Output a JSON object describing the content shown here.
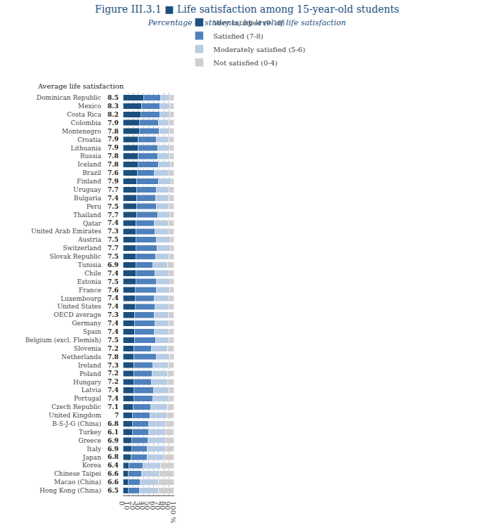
{
  "chart_data": {
    "type": "bar",
    "orientation": "horizontal",
    "stacked": true,
    "title": "Figure III.3.1 ■ Life satisfaction among 15-year-old students",
    "subtitle": "Percentage of students, by level of life satisfaction",
    "categories": [
      "Dominican Republic",
      "Mexico",
      "Costa Rica",
      "Colombia",
      "Montenegro",
      "Croatia",
      "Lithuania",
      "Russia",
      "Iceland",
      "Brazil",
      "Finland",
      "Uruguay",
      "Bulgaria",
      "Peru",
      "Thailand",
      "Qatar",
      "United Arab Emirates",
      "Austria",
      "Switzerland",
      "Slovak Republic",
      "Tunisia",
      "Chile",
      "Estonia",
      "France",
      "Luxembourg",
      "United States",
      "OECD average",
      "Germany",
      "Spain",
      "Belgium (excl. Flemish)",
      "Slovenia",
      "Netherlands",
      "Ireland",
      "Poland",
      "Hungary",
      "Latvia",
      "Portugal",
      "Czech Republic",
      "United Kingdom",
      "B-S-J-G (China)",
      "Turkey",
      "Greece",
      "Italy",
      "Japan",
      "Korea",
      "Chinese Taipei",
      "Macao (China)",
      "Hong Kong (China)"
    ],
    "series": [
      {
        "name": "Very satisfied (9-10)",
        "color": "#1b4f7e",
        "values": [
          40,
          37,
          35,
          32,
          32,
          30,
          30,
          30,
          29,
          28,
          27,
          27,
          27,
          27,
          27,
          26,
          26,
          25,
          25,
          25,
          25,
          25,
          25,
          24,
          24,
          24,
          23,
          23,
          23,
          23,
          22,
          22,
          22,
          22,
          21,
          21,
          21,
          20,
          19,
          18,
          18,
          17,
          17,
          16,
          12,
          11,
          10,
          10
        ]
      },
      {
        "name": "Satisfied (7-8)",
        "color": "#4e81bd",
        "values": [
          34,
          36,
          37,
          37,
          39,
          36,
          38,
          38,
          40,
          34,
          43,
          39,
          37,
          38,
          41,
          36,
          37,
          41,
          42,
          39,
          34,
          38,
          41,
          41,
          38,
          39,
          38,
          40,
          39,
          41,
          34,
          44,
          37,
          35,
          35,
          39,
          38,
          35,
          34,
          32,
          33,
          32,
          31,
          31,
          27,
          26,
          24,
          23
        ]
      },
      {
        "name": "Moderately satisfied (5-6)",
        "color": "#b8cce4",
        "values": [
          18,
          19,
          20,
          22,
          21,
          25,
          24,
          24,
          24,
          28,
          24,
          25,
          27,
          26,
          24,
          27,
          27,
          27,
          26,
          27,
          29,
          27,
          27,
          27,
          28,
          27,
          28,
          28,
          28,
          27,
          32,
          26,
          30,
          31,
          31,
          31,
          31,
          33,
          33,
          33,
          32,
          34,
          35,
          33,
          35,
          34,
          36,
          37
        ]
      },
      {
        "name": "Not satisfied (0-4)",
        "color": "#d0cece",
        "values": [
          8,
          8,
          8,
          9,
          8,
          9,
          8,
          8,
          7,
          10,
          6,
          9,
          9,
          9,
          8,
          11,
          10,
          7,
          7,
          9,
          12,
          10,
          7,
          8,
          10,
          10,
          11,
          9,
          10,
          9,
          12,
          8,
          11,
          12,
          13,
          9,
          10,
          12,
          14,
          17,
          17,
          17,
          17,
          20,
          26,
          29,
          30,
          30
        ]
      }
    ],
    "avg_label": "Average life satisfaction",
    "avg_satisfaction": [
      8.5,
      8.3,
      8.2,
      7.9,
      7.8,
      7.9,
      7.9,
      7.8,
      7.8,
      7.6,
      7.9,
      7.7,
      7.4,
      7.5,
      7.7,
      7.4,
      7.3,
      7.5,
      7.7,
      7.5,
      6.9,
      7.4,
      7.5,
      7.6,
      7.4,
      7.4,
      7.3,
      7.4,
      7.4,
      7.5,
      7.2,
      7.8,
      7.3,
      7.2,
      7.2,
      7.4,
      7.4,
      7.1,
      7.0,
      6.8,
      6.1,
      6.9,
      6.9,
      6.8,
      6.4,
      6.6,
      6.6,
      6.5
    ],
    "xlim": [
      0,
      100
    ],
    "xticks": [
      0,
      10,
      20,
      30,
      40,
      50,
      60,
      70,
      80,
      90,
      {
        "value": 100,
        "label": "100 %"
      }
    ],
    "grid": true,
    "legend": "top"
  }
}
